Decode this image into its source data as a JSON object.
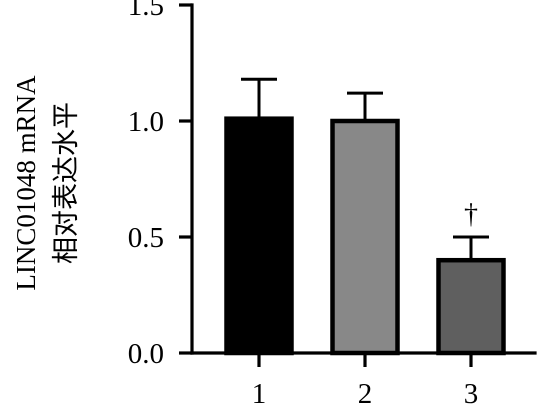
{
  "chart_data": {
    "type": "bar",
    "title": "",
    "xlabel": "",
    "ylabel_lines": [
      "LINC01048 mRNA",
      "相对表达水平"
    ],
    "categories": [
      "1",
      "2",
      "3"
    ],
    "values": [
      1.01,
      1.0,
      0.4
    ],
    "errors": [
      0.17,
      0.12,
      0.1
    ],
    "bar_colors": [
      "#000000",
      "#888888",
      "#5f5f5f"
    ],
    "annotations": [
      "",
      "",
      "†"
    ],
    "ylim": [
      0,
      1.5
    ],
    "yticks": [
      0,
      0.5,
      1.0,
      1.5
    ],
    "ytick_labels": [
      "0.0",
      "0.5",
      "1.0",
      "1.5"
    ],
    "grid": false,
    "legend": "none"
  }
}
